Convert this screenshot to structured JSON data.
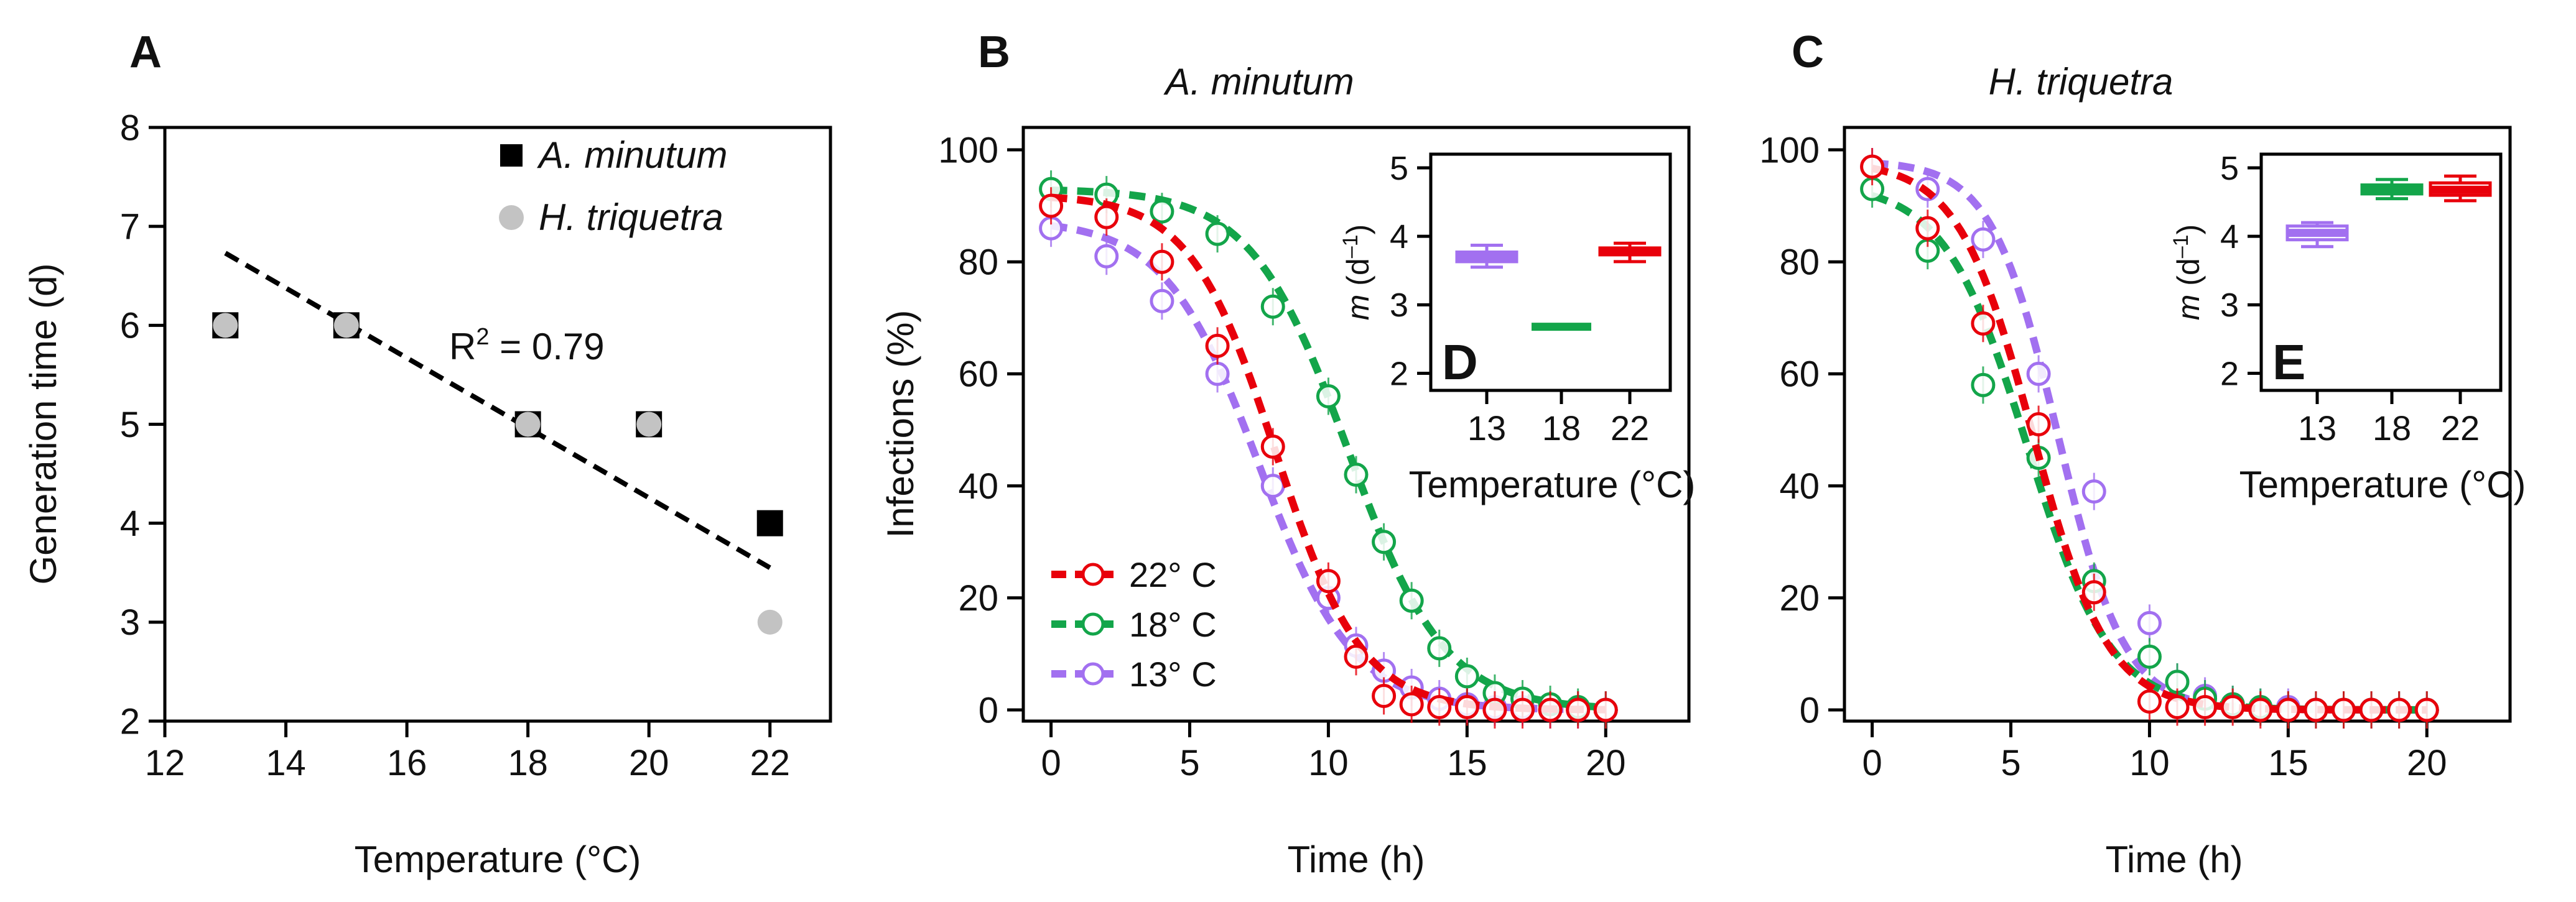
{
  "colors": {
    "c22": "#e8000b",
    "c18": "#13a54a",
    "c13": "#a270f0",
    "black": "#000000",
    "grey": "#c3c3c3"
  },
  "chart_data": [
    {
      "panel": "A",
      "type": "scatter",
      "title": "",
      "xlabel": "Temperature (°C)",
      "ylabel": "Generation time (d)",
      "xlim": [
        12,
        23
      ],
      "ylim": [
        2,
        8
      ],
      "xticks": [
        "12",
        "14",
        "16",
        "18",
        "20",
        "22"
      ],
      "yticks": [
        "2",
        "3",
        "4",
        "5",
        "6",
        "7",
        "8"
      ],
      "legend": {
        "placement": "top-right",
        "entries": [
          "A. minutum",
          "H. triquetra"
        ]
      },
      "annotation": {
        "text_main": "R",
        "text_sup": "2",
        "text_rest": " = 0.79"
      },
      "series": [
        {
          "name": "A. minutum",
          "marker": "square",
          "color": "#000000",
          "x": [
            13,
            15,
            18,
            20,
            22
          ],
          "y": [
            6,
            6,
            5,
            5,
            4
          ]
        },
        {
          "name": "H. triquetra",
          "marker": "circle",
          "color": "#c3c3c3",
          "x": [
            13,
            15,
            18,
            20,
            22
          ],
          "y": [
            6,
            6,
            5,
            5,
            3
          ]
        }
      ],
      "trendline": {
        "x": [
          13,
          22
        ],
        "y": [
          6.73,
          3.55
        ]
      }
    },
    {
      "panel": "B",
      "type": "line",
      "title": "A. minutum",
      "xlabel": "Time (h)",
      "ylabel": "Infections (%)",
      "xlim": [
        -1,
        23
      ],
      "ylim": [
        -2,
        104
      ],
      "xticks": [
        "0",
        "5",
        "10",
        "15",
        "20"
      ],
      "yticks": [
        "0",
        "20",
        "40",
        "60",
        "80",
        "100"
      ],
      "legend_placement": "bottom-left",
      "series": [
        {
          "name": "22° C",
          "color": "#e8000b",
          "x": [
            0,
            2,
            4,
            6,
            8,
            10,
            11,
            12,
            13,
            14,
            15,
            16,
            17,
            18,
            19,
            20
          ],
          "y": [
            90,
            88,
            80,
            65,
            47,
            23,
            9.5,
            2.5,
            1,
            0.5,
            0.5,
            0,
            0,
            0,
            0,
            0
          ],
          "fit": {
            "A": 92,
            "x0": 8.1,
            "s": 1.55
          }
        },
        {
          "name": "18° C",
          "color": "#13a54a",
          "x": [
            0,
            2,
            4,
            6,
            8,
            10,
            11,
            12,
            13,
            14,
            15,
            16,
            17,
            18,
            19,
            20
          ],
          "y": [
            93,
            92,
            89,
            85,
            72,
            56,
            42,
            30,
            19.5,
            11,
            6,
            3,
            2,
            1,
            0.5,
            0
          ],
          "fit": {
            "A": 93,
            "x0": 10.7,
            "s": 1.75
          }
        },
        {
          "name": "13° C",
          "color": "#a270f0",
          "x": [
            0,
            2,
            4,
            6,
            8,
            10,
            11,
            12,
            13,
            14,
            15,
            16,
            17,
            18,
            19,
            20
          ],
          "y": [
            86,
            81,
            73,
            60,
            40,
            20,
            11.5,
            7,
            4,
            2,
            1,
            0.5,
            0.5,
            0,
            0,
            0
          ],
          "fit": {
            "A": 87.5,
            "x0": 7.5,
            "s": 1.7
          }
        }
      ],
      "inset": {
        "label": "D",
        "type": "box",
        "xlabel": "Temperature (°C)",
        "ylabel_main": "m",
        "ylabel_rest": " (d",
        "ylabel_sup": "–1",
        "ylabel_close": ")",
        "ylim": [
          1.75,
          5.2
        ],
        "yticks": [
          "2",
          "3",
          "4",
          "5"
        ],
        "categories": [
          "13",
          "18",
          "22"
        ],
        "boxes": [
          {
            "category": "13",
            "color": "#a270f0",
            "min": 3.55,
            "q1": 3.63,
            "median": 3.7,
            "q3": 3.77,
            "max": 3.87
          },
          {
            "category": "18",
            "color": "#13a54a",
            "min": 2.68,
            "q1": 2.68,
            "median": 2.68,
            "q3": 2.68,
            "max": 2.68
          },
          {
            "category": "22",
            "color": "#e8000b",
            "min": 3.63,
            "q1": 3.73,
            "median": 3.78,
            "q3": 3.83,
            "max": 3.9
          }
        ]
      }
    },
    {
      "panel": "C",
      "type": "line",
      "title": "H. triquetra",
      "xlabel": "Time (h)",
      "ylabel": "",
      "xlim": [
        -1,
        23
      ],
      "ylim": [
        -2,
        104
      ],
      "xticks": [
        "0",
        "5",
        "10",
        "15",
        "20"
      ],
      "yticks": [
        "0",
        "20",
        "40",
        "60",
        "80",
        "100"
      ],
      "series": [
        {
          "name": "22° C",
          "color": "#e8000b",
          "x": [
            0,
            2,
            4,
            6,
            8,
            10,
            11,
            12,
            13,
            14,
            15,
            16,
            17,
            18,
            19,
            20
          ],
          "y": [
            97,
            86,
            69,
            51,
            21,
            1.5,
            0.5,
            0.5,
            0.5,
            0,
            0,
            0,
            0,
            0,
            0,
            0
          ],
          "fit": {
            "A": 98,
            "x0": 5.8,
            "s": 1.35
          }
        },
        {
          "name": "18° C",
          "color": "#13a54a",
          "x": [
            0,
            2,
            4,
            6,
            8,
            10,
            11,
            12,
            13,
            14,
            15,
            16,
            17,
            18,
            19,
            20
          ],
          "y": [
            93,
            82,
            58,
            45,
            23,
            9.5,
            5,
            2,
            1,
            0.5,
            0,
            0,
            0,
            0,
            0,
            0
          ],
          "fit": {
            "A": 94,
            "x0": 5.6,
            "s": 1.5
          }
        },
        {
          "name": "13° C",
          "color": "#a270f0",
          "x": [
            0,
            2,
            4,
            6,
            8,
            10,
            11,
            12,
            13,
            14,
            15,
            16,
            17,
            18,
            19,
            20
          ],
          "y": [
            97,
            93,
            84,
            60,
            39,
            15.5,
            5,
            2.5,
            1,
            0.5,
            0.5,
            0,
            0,
            0,
            0,
            0
          ],
          "fit": {
            "A": 98,
            "x0": 6.7,
            "s": 1.2
          }
        }
      ],
      "inset": {
        "label": "E",
        "type": "box",
        "xlabel": "Temperature (°C)",
        "ylabel_main": "m",
        "ylabel_rest": " (d",
        "ylabel_sup": "–1",
        "ylabel_close": ")",
        "ylim": [
          1.75,
          5.2
        ],
        "yticks": [
          "2",
          "3",
          "4",
          "5"
        ],
        "categories": [
          "13",
          "18",
          "22"
        ],
        "boxes": [
          {
            "category": "13",
            "color": "#a270f0",
            "min": 3.85,
            "q1": 3.95,
            "median": 4.05,
            "q3": 4.15,
            "max": 4.2
          },
          {
            "category": "18",
            "color": "#13a54a",
            "min": 4.55,
            "q1": 4.62,
            "median": 4.67,
            "q3": 4.75,
            "max": 4.83
          },
          {
            "category": "22",
            "color": "#e8000b",
            "min": 4.52,
            "q1": 4.6,
            "median": 4.68,
            "q3": 4.78,
            "max": 4.88
          }
        ]
      }
    }
  ]
}
